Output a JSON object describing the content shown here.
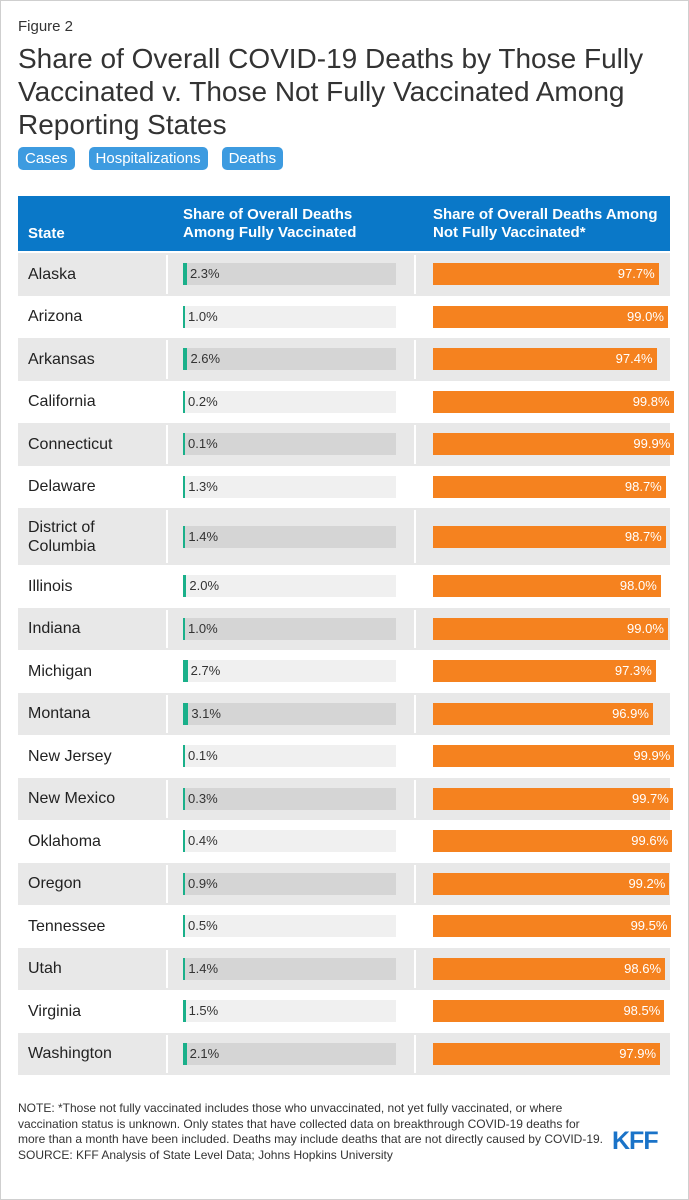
{
  "figure_label": "Figure 2",
  "title": "Share of Overall COVID-19 Deaths by Those Fully Vaccinated v. Those Not Fully Vaccinated Among Reporting States",
  "tabs": [
    "Cases",
    "Hospitalizations",
    "Deaths"
  ],
  "colors": {
    "header": "#0a78c8",
    "vaccinated": "#1ab08a",
    "not_vaccinated": "#f5821f",
    "tab": "#3d9be0"
  },
  "table": {
    "headers": {
      "state": "State",
      "vaccinated": "Share of Overall Deaths Among Fully Vaccinated",
      "not_vaccinated": "Share of Overall Deaths Among Not Fully Vaccinated*"
    }
  },
  "chart_data": {
    "type": "bar",
    "title": "Share of Overall COVID-19 Deaths by Those Fully Vaccinated v. Those Not Fully Vaccinated Among Reporting States",
    "categories": [
      "Alaska",
      "Arizona",
      "Arkansas",
      "California",
      "Connecticut",
      "Delaware",
      "District of Columbia",
      "Illinois",
      "Indiana",
      "Michigan",
      "Montana",
      "New Jersey",
      "New Mexico",
      "Oklahoma",
      "Oregon",
      "Tennessee",
      "Utah",
      "Virginia",
      "Washington"
    ],
    "series": [
      {
        "name": "Share of Overall Deaths Among Fully Vaccinated",
        "values": [
          2.3,
          1.0,
          2.6,
          0.2,
          0.1,
          1.3,
          1.4,
          2.0,
          1.0,
          2.7,
          3.1,
          0.1,
          0.3,
          0.4,
          0.9,
          0.5,
          1.4,
          1.5,
          2.1
        ],
        "labels": [
          "2.3%",
          "1.0%",
          "2.6%",
          "0.2%",
          "0.1%",
          "1.3%",
          "1.4%",
          "2.0%",
          "1.0%",
          "2.7%",
          "3.1%",
          "0.1%",
          "0.3%",
          "0.4%",
          "0.9%",
          "0.5%",
          "1.4%",
          "1.5%",
          "2.1%"
        ]
      },
      {
        "name": "Share of Overall Deaths Among Not Fully Vaccinated*",
        "values": [
          97.7,
          99.0,
          97.4,
          99.8,
          99.9,
          98.7,
          98.7,
          98.0,
          99.0,
          97.3,
          96.9,
          99.9,
          99.7,
          99.6,
          99.2,
          99.5,
          98.6,
          98.5,
          97.9
        ],
        "labels": [
          "97.7%",
          "99.0%",
          "97.4%",
          "99.8%",
          "99.9%",
          "98.7%",
          "98.7%",
          "98.0%",
          "99.0%",
          "97.3%",
          "96.9%",
          "99.9%",
          "99.7%",
          "99.6%",
          "99.2%",
          "99.5%",
          "98.6%",
          "98.5%",
          "97.9%"
        ]
      }
    ],
    "unit": "%",
    "ylim": [
      0,
      100
    ]
  },
  "note": "NOTE: *Those not fully vaccinated includes those who unvaccinated, not yet fully vaccinated, or where vaccination status is unknown. Only states that have collected data on breakthrough COVID-19 deaths for more than a month have been included. Deaths may include deaths that are not directly caused by COVID-19.",
  "source": "SOURCE: KFF Analysis of State Level Data; Johns Hopkins University",
  "logo": "KFF"
}
